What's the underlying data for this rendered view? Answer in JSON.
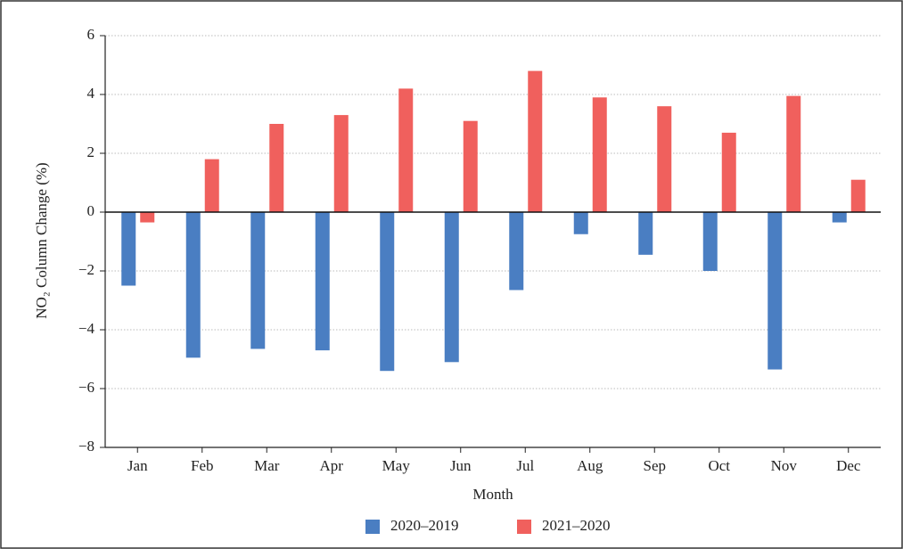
{
  "chart_data": {
    "type": "bar",
    "x_label": "Month",
    "y_label": "NO₂ Column Change (%)",
    "categories": [
      "Jan",
      "Feb",
      "Mar",
      "Apr",
      "May",
      "Jun",
      "Jul",
      "Aug",
      "Sep",
      "Oct",
      "Nov",
      "Dec"
    ],
    "series": [
      {
        "name": "2020–2019",
        "color": "#4a7ec2",
        "values": [
          -2.5,
          -4.95,
          -4.65,
          -4.7,
          -5.4,
          -5.1,
          -2.65,
          -0.75,
          -1.45,
          -2.0,
          -5.35,
          -0.35
        ]
      },
      {
        "name": "2021–2020",
        "color": "#f0605d",
        "values": [
          -0.35,
          1.8,
          3.0,
          3.3,
          4.2,
          3.1,
          4.8,
          3.9,
          3.6,
          2.7,
          3.95,
          1.1
        ]
      }
    ],
    "ylim": [
      -8,
      6
    ],
    "yticks": [
      {
        "value": -8,
        "label": "−8"
      },
      {
        "value": -6,
        "label": "−6"
      },
      {
        "value": -4,
        "label": "−4"
      },
      {
        "value": -2,
        "label": "−2"
      },
      0,
      2,
      4,
      6
    ],
    "grid": true,
    "legend": "bottom"
  }
}
